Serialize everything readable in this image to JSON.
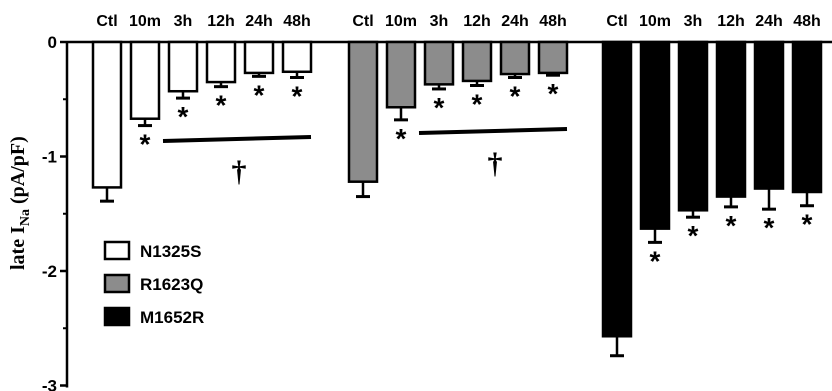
{
  "chart_data": {
    "type": "bar",
    "ylabel": {
      "main": "late I",
      "sub": "Na",
      "units": " (pA/pF)"
    },
    "ylim": [
      -3,
      0
    ],
    "yticks": [
      0,
      -1,
      -2,
      -3
    ],
    "ytick_labels": [
      "0",
      "-1",
      "-2",
      "-3"
    ],
    "categories": [
      "Ctl",
      "10m",
      "3h",
      "12h",
      "24h",
      "48h"
    ],
    "significance_marker": "*",
    "group_marker": "†",
    "series": [
      {
        "name": "N1325S",
        "color": "#ffffff",
        "values": [
          -1.27,
          -0.67,
          -0.43,
          -0.35,
          -0.27,
          -0.26
        ],
        "errors": [
          0.12,
          0.06,
          0.06,
          0.04,
          0.03,
          0.05
        ],
        "significant": [
          false,
          true,
          true,
          true,
          true,
          true
        ]
      },
      {
        "name": "R1623Q",
        "color": "#8c8c8c",
        "values": [
          -1.22,
          -0.57,
          -0.37,
          -0.34,
          -0.28,
          -0.27
        ],
        "errors": [
          0.13,
          0.11,
          0.04,
          0.04,
          0.03,
          0.02
        ],
        "significant": [
          false,
          true,
          true,
          true,
          true,
          true
        ]
      },
      {
        "name": "M1652R",
        "color": "#000000",
        "values": [
          -2.57,
          -1.63,
          -1.47,
          -1.35,
          -1.28,
          -1.31
        ],
        "errors": [
          0.17,
          0.12,
          0.06,
          0.09,
          0.18,
          0.12
        ],
        "significant": [
          false,
          true,
          true,
          true,
          true,
          true
        ]
      }
    ],
    "legend": {
      "position": "bottom-left",
      "entries": [
        "N1325S",
        "R1623Q",
        "M1652R"
      ]
    },
    "grid": false
  }
}
